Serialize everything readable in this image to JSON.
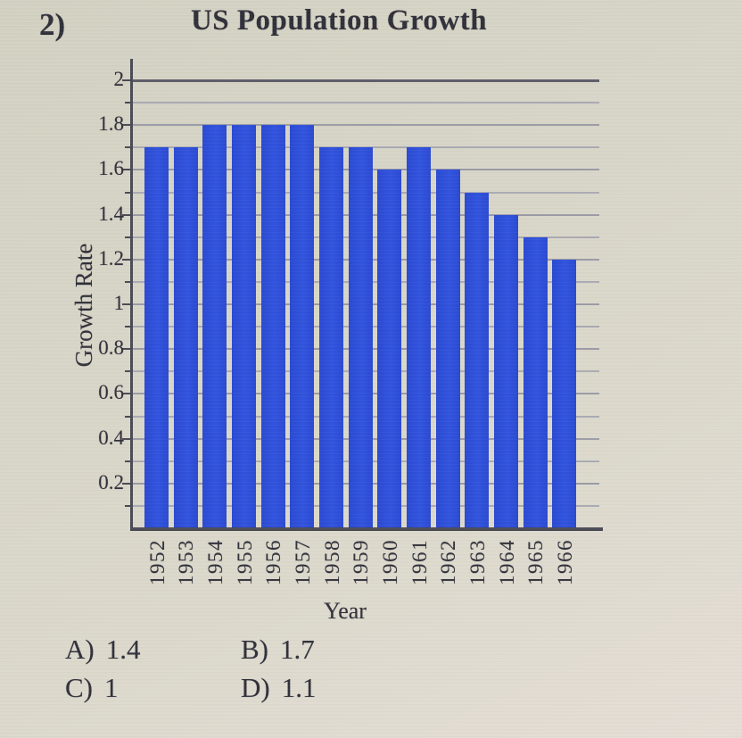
{
  "question": {
    "number": "2)"
  },
  "chart_data": {
    "type": "bar",
    "title": "US Population Growth",
    "xlabel": "Year",
    "ylabel": "Growth Rate",
    "categories": [
      "1952",
      "1953",
      "1954",
      "1955",
      "1956",
      "1957",
      "1958",
      "1959",
      "1960",
      "1961",
      "1962",
      "1963",
      "1964",
      "1965",
      "1966"
    ],
    "values": [
      1.7,
      1.7,
      1.8,
      1.8,
      1.8,
      1.8,
      1.7,
      1.7,
      1.6,
      1.7,
      1.6,
      1.5,
      1.4,
      1.3,
      1.2
    ],
    "ylim": [
      0,
      2
    ],
    "ytick_labeled_step": 0.2,
    "grid_step": 0.1,
    "grid": "horizontal",
    "legend": "none"
  },
  "answers": {
    "options": [
      {
        "label": "A)",
        "value": "1.4"
      },
      {
        "label": "B)",
        "value": "1.7"
      },
      {
        "label": "C)",
        "value": "1"
      },
      {
        "label": "D)",
        "value": "1.1"
      }
    ]
  },
  "colors": {
    "bar": "#2b4ad2",
    "background": "#d9d7c9",
    "grid_minor": "#a2a2b0",
    "grid_labeled": "#9191a0",
    "grid_major": "#5f5f6b",
    "axis": "#4b4b55",
    "text": "#31313b"
  }
}
